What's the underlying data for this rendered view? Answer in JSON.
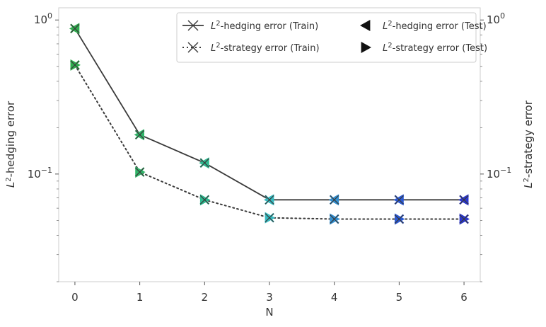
{
  "chart_data": {
    "type": "line",
    "title": "",
    "xlabel": "N",
    "ylabel_left": {
      "base": "L",
      "sup": "2",
      "rest": "-hedging error"
    },
    "ylabel_right": {
      "base": "L",
      "sup": "2",
      "rest": "-strategy error"
    },
    "x": [
      0,
      1,
      2,
      3,
      4,
      5,
      6
    ],
    "xlim": [
      -0.25,
      6.25
    ],
    "ylim": [
      0.02,
      1.2
    ],
    "yscale": "log",
    "grid": false,
    "legend_position": "top-right",
    "y_ticks": [
      {
        "value": 1,
        "base": "10",
        "exp": "0"
      },
      {
        "value": 0.1,
        "base": "10",
        "exp": "−1"
      }
    ],
    "series": [
      {
        "name": {
          "base": "L",
          "sup": "2",
          "rest": "-hedging error (Train)"
        },
        "style": "solid",
        "marker": "x",
        "color": "#3a3a3a",
        "values": [
          0.88,
          0.18,
          0.118,
          0.068,
          0.068,
          0.068,
          0.068
        ]
      },
      {
        "name": {
          "base": "L",
          "sup": "2",
          "rest": "-strategy error (Train)"
        },
        "style": "dotted",
        "marker": "x",
        "color": "#3a3a3a",
        "values": [
          0.51,
          0.103,
          0.068,
          0.052,
          0.051,
          0.051,
          0.051
        ]
      },
      {
        "name": {
          "base": "L",
          "sup": "2",
          "rest": "-hedging error (Test)"
        },
        "style": "none",
        "marker": "triangle-left",
        "values": [
          0.88,
          0.18,
          0.118,
          0.068,
          0.068,
          0.068,
          0.068
        ]
      },
      {
        "name": {
          "base": "L",
          "sup": "2",
          "rest": "-strategy error (Test)"
        },
        "style": "none",
        "marker": "triangle-right",
        "values": [
          0.51,
          0.103,
          0.068,
          0.052,
          0.051,
          0.051,
          0.051
        ]
      }
    ],
    "point_colors": [
      "#2eae4e",
      "#30b468",
      "#2dba90",
      "#37bcc1",
      "#3390d2",
      "#2a5ad6",
      "#2a36cf"
    ]
  }
}
